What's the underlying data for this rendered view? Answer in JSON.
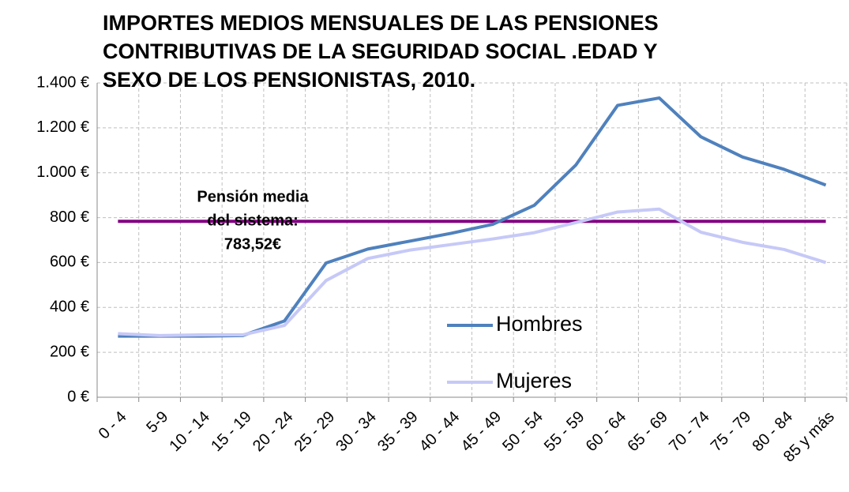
{
  "chart_data": {
    "type": "line",
    "title": [
      "IMPORTES MEDIOS MENSUALES DE LAS PENSIONES",
      "CONTRIBUTIVAS   DE LA SEGURIDAD SOCIAL .EDAD Y",
      "SEXO DE LOS PENSIONISTAS, 2010."
    ],
    "categories": [
      "0 - 4",
      "5-9",
      "10 - 14",
      "15 - 19",
      "20 - 24",
      "25 - 29",
      "30 - 34",
      "35 - 39",
      "40 - 44",
      "45 - 49",
      "50 - 54",
      "55 - 59",
      "60 - 64",
      "65 - 69",
      "70 - 74",
      "75 - 79",
      "80 - 84",
      "85 y más"
    ],
    "series": [
      {
        "name": "Hombres",
        "color": "#4f81bd",
        "values": [
          272,
          272,
          272,
          275,
          340,
          598,
          660,
          695,
          730,
          770,
          855,
          1035,
          1300,
          1333,
          1160,
          1070,
          1015,
          945
        ]
      },
      {
        "name": "Mujeres",
        "color": "#c6c9f7",
        "values": [
          283,
          275,
          278,
          278,
          320,
          520,
          618,
          655,
          680,
          705,
          733,
          778,
          825,
          838,
          735,
          690,
          658,
          600
        ]
      }
    ],
    "reference_line": {
      "value": 783.52,
      "color": "#800080",
      "label": [
        "Pensión media",
        "del sistema:",
        "783,52€"
      ]
    },
    "ylim": [
      0,
      1400
    ],
    "yticks": [
      {
        "value": 0,
        "label": "0 €"
      },
      {
        "value": 200,
        "label": "200 €"
      },
      {
        "value": 400,
        "label": "400 €"
      },
      {
        "value": 600,
        "label": "600 €"
      },
      {
        "value": 800,
        "label": "800 €"
      },
      {
        "value": 1000,
        "label": "1.000 €"
      },
      {
        "value": 1200,
        "label": "1.200 €"
      },
      {
        "value": 1400,
        "label": "1.400 €"
      }
    ],
    "grid": true
  }
}
